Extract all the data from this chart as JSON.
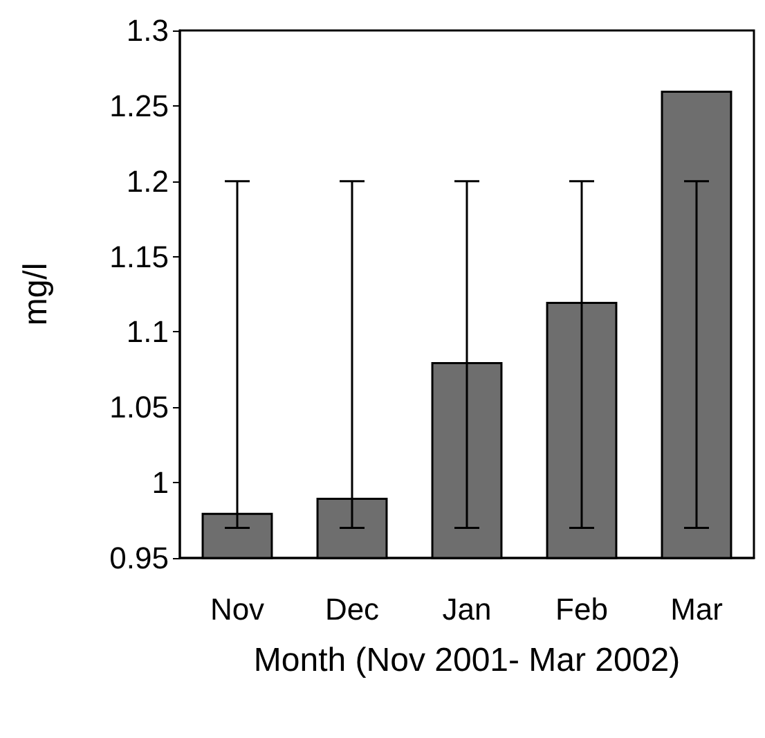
{
  "chart_data": {
    "type": "bar",
    "xlabel": "Month (Nov 2001- Mar 2002)",
    "ylabel": "mg/l",
    "categories": [
      "Nov",
      "Dec",
      "Jan",
      "Feb",
      "Mar"
    ],
    "values": [
      0.98,
      0.99,
      1.08,
      1.12,
      1.26
    ],
    "errors": [
      [
        0.97,
        1.2
      ],
      [
        0.97,
        1.2
      ],
      [
        0.97,
        1.2
      ],
      [
        0.97,
        1.2
      ],
      [
        0.97,
        1.2
      ]
    ],
    "color": "#6e6e6e",
    "ylim": [
      0.95,
      1.3
    ],
    "yticks": [
      0.95,
      1,
      1.05,
      1.1,
      1.15,
      1.2,
      1.25,
      1.3
    ],
    "grid": false
  }
}
